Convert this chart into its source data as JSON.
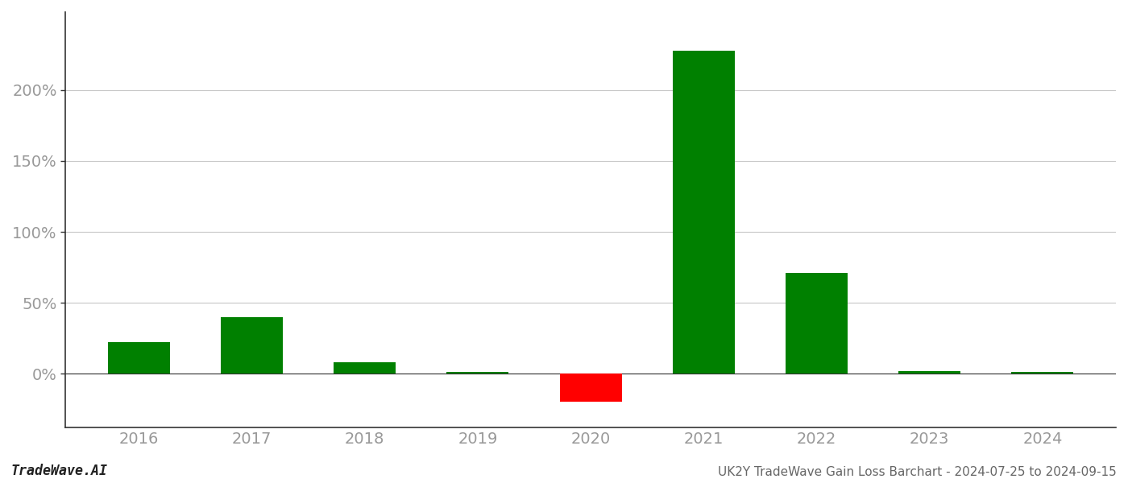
{
  "categories": [
    "2016",
    "2017",
    "2018",
    "2019",
    "2020",
    "2021",
    "2022",
    "2023",
    "2024"
  ],
  "values": [
    22,
    40,
    8,
    1.5,
    -20,
    228,
    71,
    2,
    1.5
  ],
  "colors": [
    "#008000",
    "#008000",
    "#008000",
    "#008000",
    "#ff0000",
    "#008000",
    "#008000",
    "#008000",
    "#008000"
  ],
  "ylim_min": -38,
  "ylim_max": 255,
  "footer_left": "TradeWave.AI",
  "footer_right": "UK2Y TradeWave Gain Loss Barchart - 2024-07-25 to 2024-09-15",
  "yticks": [
    0,
    50,
    100,
    150,
    200
  ],
  "background_color": "#ffffff",
  "grid_color": "#c8c8c8",
  "axis_color": "#333333",
  "text_color": "#999999",
  "bar_width": 0.55
}
